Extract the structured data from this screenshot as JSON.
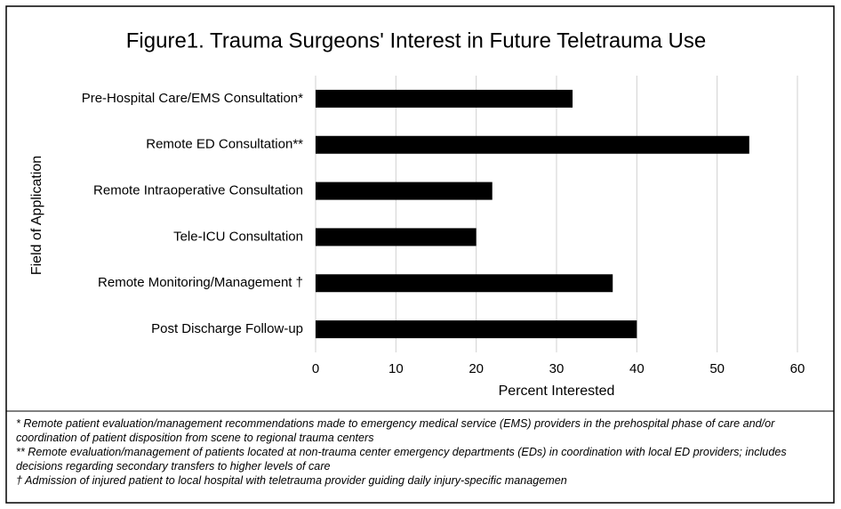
{
  "chart_data": {
    "type": "barh",
    "title": "Figure1. Trauma Surgeons' Interest in Future Teletrauma Use",
    "categories": [
      "Pre-Hospital Care/EMS Consultation*",
      "Remote ED Consultation**",
      "Remote Intraoperative Consultation",
      "Tele-ICU Consultation",
      "Remote Monitoring/Management †",
      "Post Discharge Follow-up"
    ],
    "values": [
      32,
      54,
      22,
      20,
      37,
      40
    ],
    "color": "#000000",
    "xlabel": "Percent Interested",
    "ylabel": "Field of Application",
    "xlim": [
      0,
      60
    ],
    "xticks": [
      0,
      10,
      20,
      30,
      40,
      50,
      60
    ],
    "grid": true,
    "notes": [
      "* Remote patient evaluation/management recommendations made to emergency medical service (EMS) providers in the prehospital phase of care and/or coordination of patient disposition from scene to regional trauma centers",
      "** Remote evaluation/management of patients located at non-trauma center emergency departments (EDs) in coordination with local ED providers; includes decisions regarding secondary transfers to higher levels of care",
      "† Admission of injured patient to local hospital with teletrauma provider guiding daily injury-specific managemen"
    ]
  }
}
